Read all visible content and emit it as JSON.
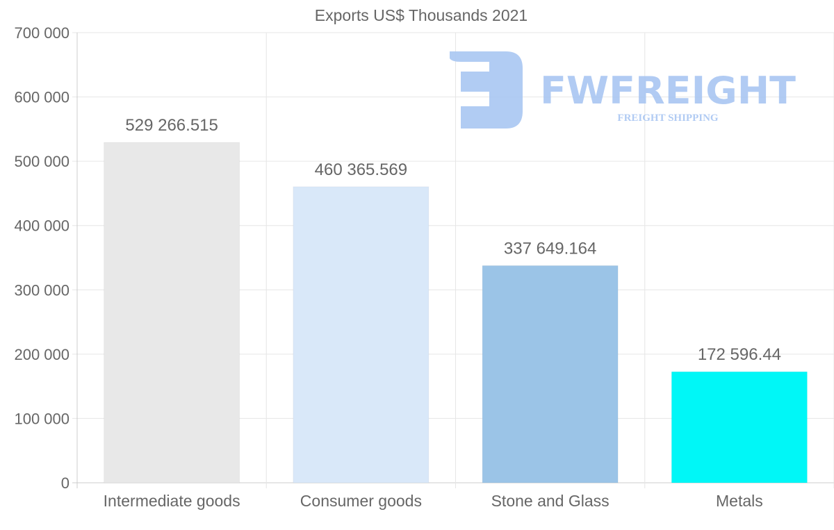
{
  "chart_data": {
    "type": "bar",
    "title": "Exports US$ Thousands 2021",
    "xlabel": "",
    "ylabel": "",
    "categories": [
      "Intermediate goods",
      "Consumer goods",
      "Stone and Glass",
      "Metals"
    ],
    "values": [
      529266.515,
      460365.569,
      337649.164,
      172596.44
    ],
    "value_labels": [
      "529 266.515",
      "460 365.569",
      "337 649.164",
      "172 596.44"
    ],
    "colors": [
      "#e8e8e8",
      "#d9e8f9",
      "#9bc4e7",
      "#00f7f7"
    ],
    "ylim": [
      0,
      700000
    ],
    "yticks": [
      0,
      100000,
      200000,
      300000,
      400000,
      500000,
      600000,
      700000
    ],
    "ytick_labels": [
      "0",
      "100 000",
      "200 000",
      "300 000",
      "400 000",
      "500 000",
      "600 000",
      "700 000"
    ],
    "grid": true,
    "legend": "none"
  },
  "watermark": {
    "name": "FWFREIGHT",
    "tagline": "FREIGHT SHIPPING",
    "color": "#a9c6f2"
  }
}
